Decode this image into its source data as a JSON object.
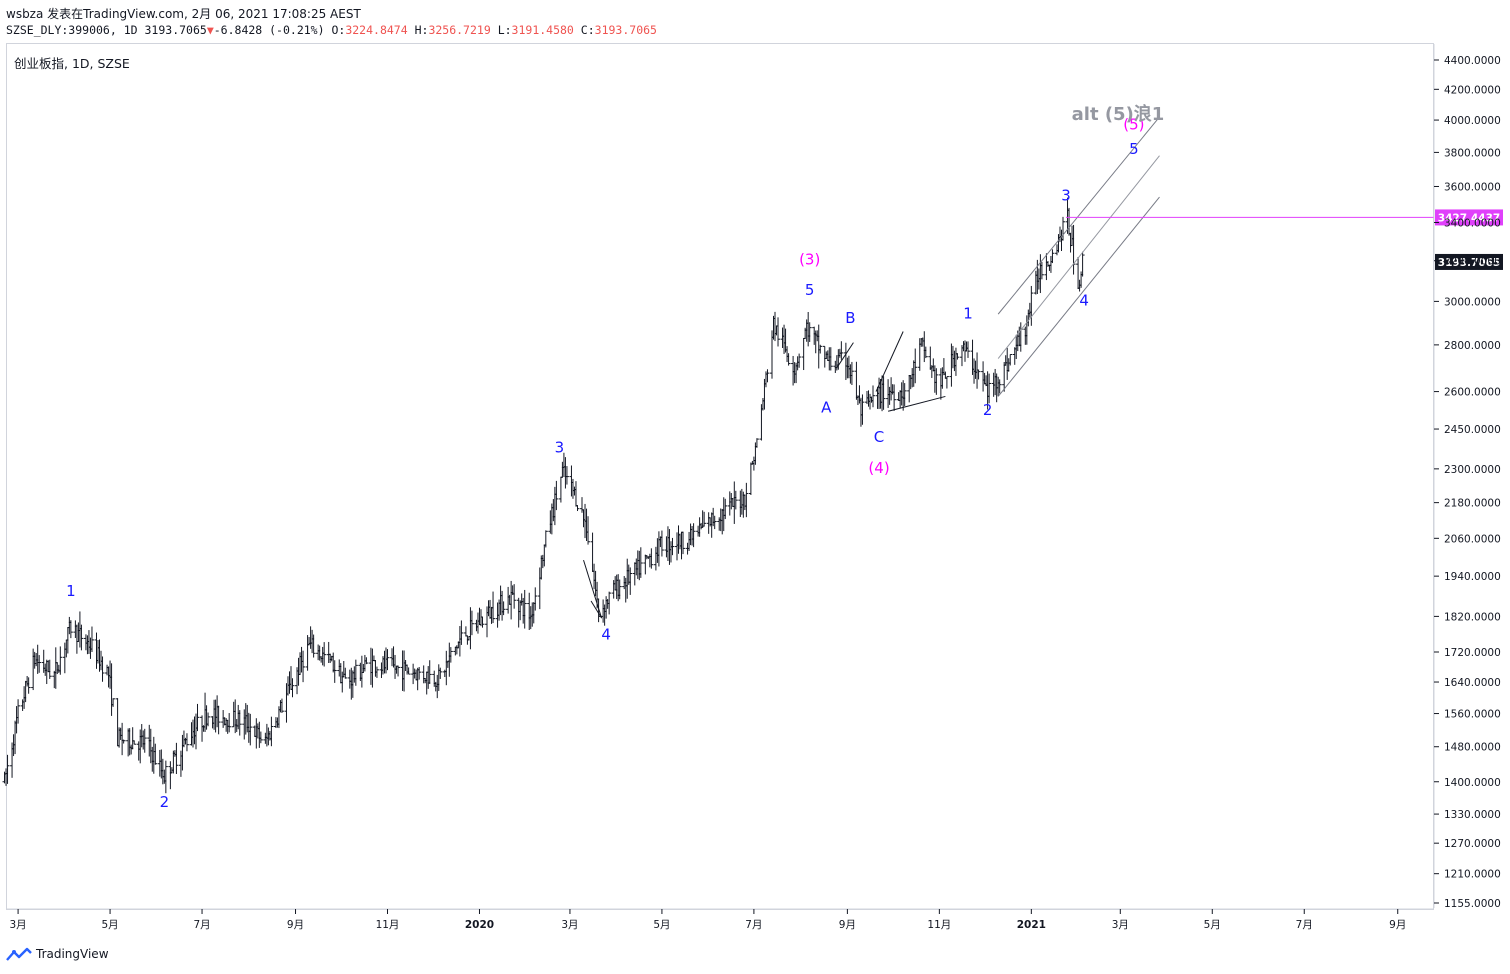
{
  "header": {
    "published": "wsbza  发表在TradingView.com, 2月 06, 2021 17:08:25 AEST",
    "symbol": "SZSE_DLY:399006, 1D",
    "last": "3193.7065",
    "arrow": "▼",
    "change": "-6.8428 (-0.21%)",
    "o_label": "O:",
    "o": "3224.8474",
    "h_label": "H:",
    "h": "3256.7219",
    "l_label": "L:",
    "l": "3191.4580",
    "c_label": "C:",
    "c": "3193.7065"
  },
  "instrument": "创业板指, 1D, SZSE",
  "footer": {
    "logo_text": "TradingView"
  },
  "colors": {
    "wave_blue": "#1a1aff",
    "wave_magenta": "#ff00ff",
    "alt_gray": "#9598a1",
    "line": "#131722",
    "hline": "#e040fb",
    "last_bg": "#131722"
  },
  "chart_data": {
    "type": "ohlc",
    "scale": "log",
    "x_axis": {
      "labels": [
        "3月",
        "5月",
        "7月",
        "9月",
        "11月",
        "2020",
        "3月",
        "5月",
        "7月",
        "9月",
        "11月",
        "2021",
        "3月",
        "5月",
        "7月",
        "9月"
      ]
    },
    "y_axis": {
      "ticks": [
        1155,
        1210,
        1270,
        1330,
        1400,
        1480,
        1560,
        1640,
        1720,
        1820,
        1940,
        2060,
        2180,
        2300,
        2450,
        2600,
        2800,
        3000,
        3200,
        3400,
        3600,
        3800,
        4000,
        4200,
        4400
      ],
      "tick_labels": [
        "1155.0000",
        "1210.0000",
        "1270.0000",
        "1330.0000",
        "1400.0000",
        "1480.0000",
        "1560.0000",
        "1640.0000",
        "1720.0000",
        "1820.0000",
        "1940.0000",
        "2060.0000",
        "2180.0000",
        "2300.0000",
        "2450.0000",
        "2600.0000",
        "2800.0000",
        "3000.0000",
        "3200.0000",
        "3400.0000",
        "3600.0000",
        "3800.0000",
        "4000.0000",
        "4200.0000",
        "4400.0000"
      ],
      "range": [
        1130,
        4520
      ]
    },
    "price_path": [
      [
        "2019-02-20",
        1400
      ],
      [
        "2019-03-01",
        1560
      ],
      [
        "2019-03-12",
        1700
      ],
      [
        "2019-03-25",
        1660
      ],
      [
        "2019-04-05",
        1790
      ],
      [
        "2019-04-20",
        1730
      ],
      [
        "2019-04-30",
        1660
      ],
      [
        "2019-05-06",
        1500
      ],
      [
        "2019-05-25",
        1490
      ],
      [
        "2019-06-06",
        1415
      ],
      [
        "2019-06-25",
        1520
      ],
      [
        "2019-07-05",
        1560
      ],
      [
        "2019-07-30",
        1540
      ],
      [
        "2019-08-12",
        1490
      ],
      [
        "2019-08-30",
        1640
      ],
      [
        "2019-09-10",
        1740
      ],
      [
        "2019-09-25",
        1690
      ],
      [
        "2019-10-05",
        1640
      ],
      [
        "2019-10-20",
        1690
      ],
      [
        "2019-11-15",
        1670
      ],
      [
        "2019-12-05",
        1650
      ],
      [
        "2019-12-20",
        1760
      ],
      [
        "2020-01-10",
        1840
      ],
      [
        "2020-01-23",
        1880
      ],
      [
        "2020-02-04",
        1820
      ],
      [
        "2020-02-15",
        2080
      ],
      [
        "2020-02-25",
        2290
      ],
      [
        "2020-03-05",
        2200
      ],
      [
        "2020-03-12",
        2100
      ],
      [
        "2020-03-20",
        1830
      ],
      [
        "2020-03-31",
        1900
      ],
      [
        "2020-04-15",
        1960
      ],
      [
        "2020-05-01",
        2040
      ],
      [
        "2020-05-20",
        2060
      ],
      [
        "2020-06-05",
        2130
      ],
      [
        "2020-06-25",
        2200
      ],
      [
        "2020-07-03",
        2400
      ],
      [
        "2020-07-14",
        2890
      ],
      [
        "2020-07-28",
        2700
      ],
      [
        "2020-08-05",
        2880
      ],
      [
        "2020-08-20",
        2720
      ],
      [
        "2020-09-01",
        2730
      ],
      [
        "2020-09-10",
        2520
      ],
      [
        "2020-09-25",
        2600
      ],
      [
        "2020-10-10",
        2600
      ],
      [
        "2020-10-20",
        2800
      ],
      [
        "2020-11-01",
        2620
      ],
      [
        "2020-11-15",
        2800
      ],
      [
        "2020-11-25",
        2700
      ],
      [
        "2020-12-03",
        2600
      ],
      [
        "2020-12-15",
        2700
      ],
      [
        "2020-12-28",
        2880
      ],
      [
        "2021-01-06",
        3150
      ],
      [
        "2021-01-15",
        3240
      ],
      [
        "2021-01-25",
        3420
      ],
      [
        "2021-02-01",
        3080
      ],
      [
        "2021-02-04",
        3194
      ]
    ],
    "wave_labels": [
      {
        "text": "1",
        "date": "2019-04-05",
        "price": 1880,
        "color": "blue"
      },
      {
        "text": "2",
        "date": "2019-06-06",
        "price": 1345,
        "color": "blue"
      },
      {
        "text": "3",
        "date": "2020-02-23",
        "price": 2360,
        "color": "blue"
      },
      {
        "text": "4",
        "date": "2020-03-25",
        "price": 1755,
        "color": "blue"
      },
      {
        "text": "5",
        "date": "2020-08-07",
        "price": 3030,
        "color": "blue"
      },
      {
        "text": "(3)",
        "date": "2020-08-07",
        "price": 3180,
        "color": "magenta"
      },
      {
        "text": "A",
        "date": "2020-08-18",
        "price": 2515,
        "color": "blue"
      },
      {
        "text": "B",
        "date": "2020-09-03",
        "price": 2900,
        "color": "blue"
      },
      {
        "text": "C",
        "date": "2020-09-22",
        "price": 2400,
        "color": "blue"
      },
      {
        "text": "(4)",
        "date": "2020-09-22",
        "price": 2285,
        "color": "magenta"
      },
      {
        "text": "1",
        "date": "2020-11-20",
        "price": 2920,
        "color": "blue"
      },
      {
        "text": "2",
        "date": "2020-12-03",
        "price": 2505,
        "color": "blue"
      },
      {
        "text": "3",
        "date": "2021-01-24",
        "price": 3520,
        "color": "blue"
      },
      {
        "text": "4",
        "date": "2021-02-05",
        "price": 2980,
        "color": "blue"
      },
      {
        "text": "5",
        "date": "2021-03-10",
        "price": 3790,
        "color": "blue"
      },
      {
        "text": "(5)",
        "date": "2021-03-10",
        "price": 3940,
        "color": "magenta"
      }
    ],
    "alt_label": "alt (5)浪1",
    "trendlines": [
      [
        [
          "2020-03-10",
          1990
        ],
        [
          "2020-03-22",
          1815
        ]
      ],
      [
        [
          "2020-03-15",
          1865
        ],
        [
          "2020-03-22",
          1815
        ]
      ],
      [
        [
          "2020-08-25",
          2700
        ],
        [
          "2020-09-05",
          2810
        ]
      ],
      [
        [
          "2020-09-20",
          2600
        ],
        [
          "2020-10-08",
          2860
        ]
      ],
      [
        [
          "2020-09-28",
          2520
        ],
        [
          "2020-11-05",
          2580
        ]
      ],
      [
        [
          "2020-12-10",
          2940
        ],
        [
          "2021-03-27",
          4020
        ]
      ],
      [
        [
          "2020-12-10",
          2740
        ],
        [
          "2021-03-27",
          3780
        ]
      ],
      [
        [
          "2020-12-10",
          2580
        ],
        [
          "2021-03-27",
          3540
        ]
      ]
    ],
    "horizontal_level": {
      "value": 3427.4437,
      "label": "3427.4437",
      "from": "2021-01-24"
    },
    "last_price": {
      "value": 3193.7065,
      "label": "3193.7065"
    }
  }
}
